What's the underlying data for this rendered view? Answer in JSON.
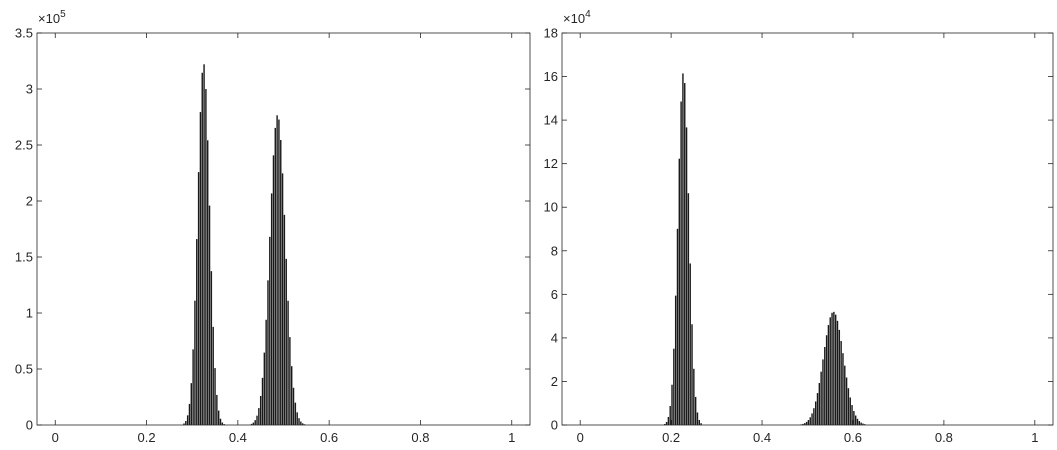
{
  "chart_data": [
    {
      "type": "bar",
      "title": "",
      "xlabel": "",
      "ylabel": "",
      "xlim": [
        -0.04,
        1.04
      ],
      "ylim": [
        0,
        3.5
      ],
      "y_multiplier": "×10",
      "y_exponent": "5",
      "xticks": [
        0,
        0.2,
        0.4,
        0.6,
        0.8,
        1
      ],
      "xtick_labels": [
        "0",
        "0.2",
        "0.4",
        "0.6",
        "0.8",
        "1"
      ],
      "yticks": [
        0,
        0.5,
        1,
        1.5,
        2,
        2.5,
        3,
        3.5
      ],
      "ytick_labels": [
        "0",
        "0.5",
        "1",
        "1.5",
        "2",
        "2.5",
        "3",
        "3.5"
      ],
      "bin_width": 0.004,
      "peaks": [
        {
          "center": 0.325,
          "height": 3.23,
          "width": 0.013
        },
        {
          "center": 0.487,
          "height": 2.77,
          "width": 0.017
        }
      ],
      "grid": false,
      "bar_color": "#1a1a1a"
    },
    {
      "type": "bar",
      "title": "",
      "xlabel": "",
      "ylabel": "",
      "xlim": [
        -0.04,
        1.04
      ],
      "ylim": [
        0,
        18
      ],
      "y_multiplier": "×10",
      "y_exponent": "4",
      "xticks": [
        0,
        0.2,
        0.4,
        0.6,
        0.8,
        1
      ],
      "xtick_labels": [
        "0",
        "0.2",
        "0.4",
        "0.6",
        "0.8",
        "1"
      ],
      "yticks": [
        0,
        2,
        4,
        6,
        8,
        10,
        12,
        14,
        16,
        18
      ],
      "ytick_labels": [
        "0",
        "2",
        "4",
        "6",
        "8",
        "10",
        "12",
        "14",
        "16",
        "18"
      ],
      "bin_width": 0.004,
      "peaks": [
        {
          "center": 0.227,
          "height": 16.2,
          "width": 0.012
        },
        {
          "center": 0.557,
          "height": 5.2,
          "width": 0.022
        }
      ],
      "grid": false,
      "bar_color": "#1a1a1a"
    }
  ]
}
